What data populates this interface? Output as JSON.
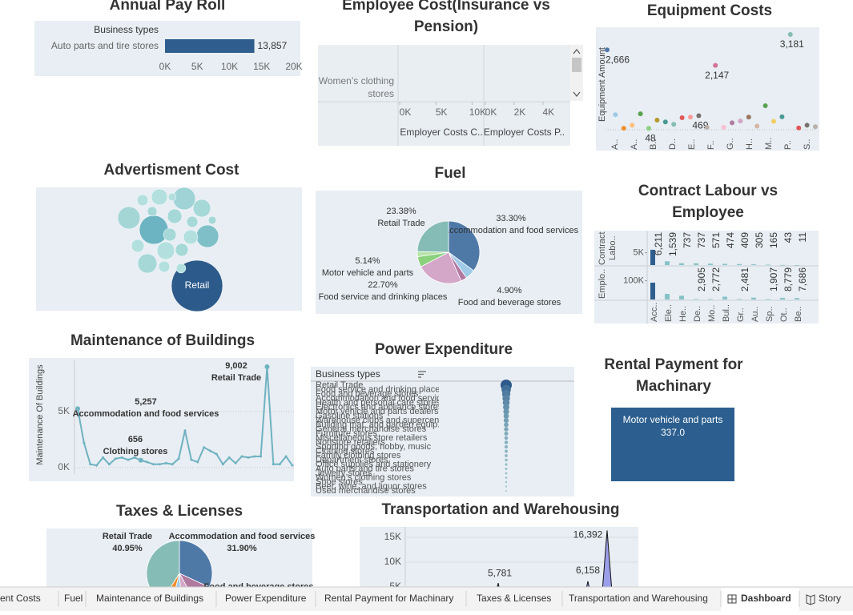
{
  "chart_data": [
    {
      "type": "bar",
      "orientation": "horizontal",
      "title": "Annual Pay Roll",
      "header": "Business types",
      "categories": [
        "Auto parts and tire stores"
      ],
      "values": [
        13857
      ],
      "value_labels": [
        "13,857"
      ],
      "color": "#2f5e8e",
      "xlim": [
        0,
        20000
      ],
      "xticks": [
        {
          "value": 0,
          "label": "0K"
        },
        {
          "value": 5000,
          "label": "5K"
        },
        {
          "value": 10000,
          "label": "10K"
        },
        {
          "value": 15000,
          "label": "15K"
        },
        {
          "value": 20000,
          "label": "20K"
        }
      ]
    },
    {
      "type": "bar",
      "orientation": "horizontal",
      "title": "Employee Cost(Insurance vs Pension)",
      "categories": [
        "Women’s clothing stores"
      ],
      "series": [
        {
          "name": "Employer Costs C..",
          "xlim": [
            0,
            11500
          ],
          "xticks": [
            {
              "value": 0,
              "label": "0K"
            },
            {
              "value": 5000,
              "label": "5K"
            },
            {
              "value": 10000,
              "label": "10K"
            }
          ]
        },
        {
          "name": "Employer Costs P..",
          "xlim": [
            0,
            5400
          ],
          "xticks": [
            {
              "value": 0,
              "label": "0K"
            },
            {
              "value": 2000,
              "label": "2K"
            },
            {
              "value": 4000,
              "label": "4K"
            }
          ]
        }
      ]
    },
    {
      "type": "scatter",
      "title": "Equipment Costs",
      "y_label": "Equipment Amount",
      "x_labels": [
        "A..",
        "A..",
        "B..",
        "D..",
        "E..",
        "F..",
        "G..",
        "H..",
        "M..",
        "P..",
        "S.."
      ],
      "values": [
        2666,
        500,
        50,
        150,
        530,
        48,
        320,
        260,
        180,
        400,
        420,
        469,
        80,
        2147,
        80,
        230,
        290,
        420,
        120,
        800,
        280,
        430,
        3181,
        60,
        150,
        100
      ],
      "value_labels": [
        "2,666",
        null,
        null,
        null,
        null,
        "48",
        null,
        null,
        null,
        null,
        null,
        "469",
        null,
        "2,147",
        null,
        null,
        null,
        null,
        null,
        null,
        null,
        null,
        "3,181",
        null,
        null,
        null
      ],
      "colors": [
        "#4e79a7",
        "#a0cbe8",
        "#f28e2b",
        "#ffbe7d",
        "#59a14f",
        "#8cd17d",
        "#b6992d",
        "#499894",
        "#86bcb6",
        "#e15759",
        "#ff9d9a",
        "#79706e",
        "#bab0ac",
        "#d37295",
        "#fabfd2",
        "#b07aa1",
        "#d4a6c8",
        "#9d7660",
        "#d7b5a6",
        "#59a14f",
        "#f1ce63",
        "#499894",
        "#86bcb6",
        "#e15759",
        "#79706e",
        "#bab0ac"
      ],
      "ylim": [
        0,
        3260
      ]
    },
    {
      "type": "bubble",
      "title": "Advertisment Cost",
      "categories": [
        "Retail",
        null,
        null,
        null,
        null,
        null,
        null,
        null,
        null,
        null,
        null,
        null,
        null,
        null,
        null,
        null,
        null,
        null,
        null,
        null,
        null
      ],
      "values": [
        100,
        31.6,
        19.1,
        19.1,
        19.1,
        14.1,
        11.8,
        11.8,
        9.8,
        7.9,
        7.9,
        6.3,
        6.3,
        6.3,
        4.8,
        4.8,
        4.8,
        3.5,
        3.5,
        2.4,
        2.4
      ],
      "colors": [
        "#2c5a8a",
        "#6cb4c2",
        "#9fd3d6",
        "#a5d6d6",
        "#7fc0c8",
        "#a6d8d8",
        "#b3e0df",
        "#a6d8d8",
        "#b3e0df",
        "#a6d8d8",
        "#b3e0df",
        "#a6d8d8",
        "#b3e0df",
        "#a6d8d8",
        "#b3e0df",
        "#a6d8d8",
        "#b3e0df",
        "#a6d8d8",
        "#b3e0df",
        "#a6d8d8",
        "#b3e0df"
      ]
    },
    {
      "type": "pie",
      "title": "Fuel",
      "categories": [
        "Accommodation and food services",
        "Food and beverage stores",
        null,
        "Food service and drinking places",
        "Motor vehicle and parts",
        null,
        "Retail Trade"
      ],
      "values": [
        33.3,
        4.9,
        3.0,
        22.7,
        5.14,
        2.5,
        23.38
      ],
      "value_labels": [
        "33.30%",
        "4.90%",
        null,
        "22.70%",
        "5.14%",
        null,
        "23.38%"
      ],
      "colors": [
        "#4e79a7",
        "#a0cbe8",
        "#b07aa1",
        "#d4a6c8",
        "#8cd17d",
        "#b6e3a8",
        "#86bcb6"
      ]
    },
    {
      "type": "bar",
      "orientation": "vertical",
      "title": "Contract Labour vs Employee",
      "categories": [
        "Acc..",
        "Ele..",
        "He..",
        "De..",
        "Mo..",
        "Bul..",
        "Gr..",
        "Au..",
        "Sp..",
        "Ot..",
        "Be.."
      ],
      "colors": [
        "#2f5e8e",
        "#86c3c9",
        "#86c3c9",
        "#86c3c9",
        "#86c3c9",
        "#86c3c9",
        "#86c3c9",
        "#86c3c9",
        "#86c3c9",
        "#86c3c9",
        "#86c3c9"
      ],
      "series": [
        {
          "name": "Contract Labo..",
          "values": [
            6211,
            1539,
            737,
            737,
            571,
            474,
            409,
            305,
            165,
            43,
            11
          ],
          "value_labels": [
            "6,211",
            "1,539",
            "737",
            "737",
            "571",
            "474",
            "409",
            "305",
            "165",
            "43",
            "11"
          ],
          "ylim": [
            0,
            14000
          ],
          "yticks": [
            {
              "value": 5000,
              "label": "5K"
            }
          ]
        },
        {
          "name": "Emplo..",
          "values": [
            90000,
            30000,
            20000,
            2905,
            2772,
            15000,
            2481,
            10000,
            1907,
            8779,
            7686
          ],
          "value_labels": [
            null,
            null,
            null,
            "2,905",
            "2,772",
            null,
            "2,481",
            null,
            "1,907",
            "8,779",
            "7,686"
          ],
          "ylim": [
            0,
            180000
          ],
          "yticks": [
            {
              "value": 100000,
              "label": "100K"
            }
          ]
        }
      ]
    },
    {
      "type": "line",
      "title": "Maintenance of Buildings",
      "y_label": "Maintenance Of Buildings",
      "color": "#6fb2c1",
      "grid": true,
      "values": [
        5257,
        2200,
        300,
        200,
        900,
        300,
        800,
        900,
        700,
        900,
        656,
        500,
        300,
        300,
        400,
        300,
        800,
        3300,
        700,
        500,
        1800,
        1500,
        1200,
        300,
        900,
        400,
        1000,
        900,
        1000,
        1000,
        9002,
        300,
        300,
        1000,
        200
      ],
      "value_labels": [
        "5,257",
        null,
        null,
        null,
        null,
        null,
        null,
        null,
        null,
        null,
        "656",
        null,
        null,
        null,
        null,
        null,
        null,
        null,
        null,
        null,
        null,
        null,
        null,
        null,
        null,
        null,
        null,
        null,
        null,
        null,
        "9,002",
        null,
        null,
        null,
        null
      ],
      "categories": [
        "Accommodation and food services",
        null,
        null,
        null,
        null,
        null,
        null,
        null,
        null,
        null,
        "Clothing stores",
        null,
        null,
        null,
        null,
        null,
        null,
        null,
        null,
        null,
        null,
        null,
        null,
        null,
        null,
        null,
        null,
        null,
        null,
        null,
        "Retail Trade",
        null,
        null,
        null,
        null
      ],
      "ylim": [
        -430,
        9570
      ],
      "yticks": [
        {
          "value": 0,
          "label": "0K"
        },
        {
          "value": 5000,
          "label": "5K"
        }
      ]
    },
    {
      "type": "dot",
      "title": "Power Expenditure",
      "header": "Business types",
      "categories": [
        "Retail Trade",
        "Food service and drinking places",
        "Food and beverage stores",
        "Accommodation and food services",
        "Health and personal care stores",
        "Electronics and appliance stores",
        "Motor vehicle and parts dealers",
        "Gasoline stations",
        "Warehouse clubs and supercenters",
        "Building mat. and garden equip.",
        "General merchandise stores",
        "Furniture stores",
        "Miscellaneous store retailers",
        "Nonstore retailers",
        "Sporting goods, hobby, music",
        "Clothing stores",
        "Family clothing stores",
        "Department stores",
        "Office supplies and stationery",
        "Auto parts and tire stores",
        "Jewelry stores",
        "Women’s clothing stores",
        "Shoe stores",
        "Beer, wine, and liquor stores",
        "Used merchandise stores"
      ],
      "values": [
        100,
        70,
        55,
        45,
        38,
        32,
        27,
        23,
        20,
        17,
        15,
        13,
        11,
        10,
        9,
        8,
        7,
        6,
        5,
        4.5,
        4,
        3.5,
        3,
        2.5,
        2
      ]
    },
    {
      "type": "treemap",
      "title": "Rental Payment for Machinary",
      "categories": [
        "Motor vehicle and parts"
      ],
      "values": [
        337
      ],
      "value_labels": [
        "337.0"
      ],
      "color": "#2c5f8f"
    },
    {
      "type": "pie",
      "title": "Taxes & Licenses",
      "categories": [
        "Accommodation and food services",
        "Food and beverage stores",
        null,
        null,
        null,
        "Retail Trade"
      ],
      "values": [
        31.9,
        10,
        7,
        5.15,
        5,
        40.95
      ],
      "value_labels": [
        "31.90%",
        null,
        null,
        null,
        null,
        "40.95%"
      ],
      "colors": [
        "#4e79a7",
        "#b07aa1",
        "#d4a6c8",
        "#a0cbe8",
        "#f28e2b",
        "#86bcb6"
      ]
    },
    {
      "type": "area",
      "title": "Transportation and Warehousing",
      "color": "#9b9ee8",
      "grid": true,
      "values": [
        0,
        0,
        0,
        0,
        0,
        0,
        0,
        0,
        0,
        0,
        0,
        0,
        0,
        0,
        5781,
        0,
        0,
        0,
        0,
        0,
        0,
        0,
        0,
        0,
        0,
        0,
        0,
        0,
        6158,
        0,
        0,
        16392,
        0,
        0,
        0,
        0
      ],
      "value_labels": [
        null,
        null,
        null,
        null,
        null,
        null,
        null,
        null,
        null,
        null,
        null,
        null,
        null,
        null,
        "5,781",
        null,
        null,
        null,
        null,
        null,
        null,
        null,
        null,
        null,
        null,
        null,
        null,
        null,
        "6,158",
        null,
        null,
        "16,392",
        null,
        null,
        null,
        null
      ],
      "ylim": [
        0,
        17500
      ],
      "yticks": [
        {
          "value": 5000,
          "label": "5K"
        },
        {
          "value": 10000,
          "label": "10K"
        },
        {
          "value": 15000,
          "label": "15K"
        }
      ]
    }
  ],
  "tabs": [
    {
      "label": "ent Costs"
    },
    {
      "label": "Fuel"
    },
    {
      "label": "Maintenance of Buildings"
    },
    {
      "label": "Power Expenditure"
    },
    {
      "label": "Rental Payment for Machinary"
    },
    {
      "label": "Taxes & Licenses"
    },
    {
      "label": "Transportation and Warehousing"
    },
    {
      "label": "Dashboard",
      "active": true
    },
    {
      "label": "Story"
    }
  ]
}
